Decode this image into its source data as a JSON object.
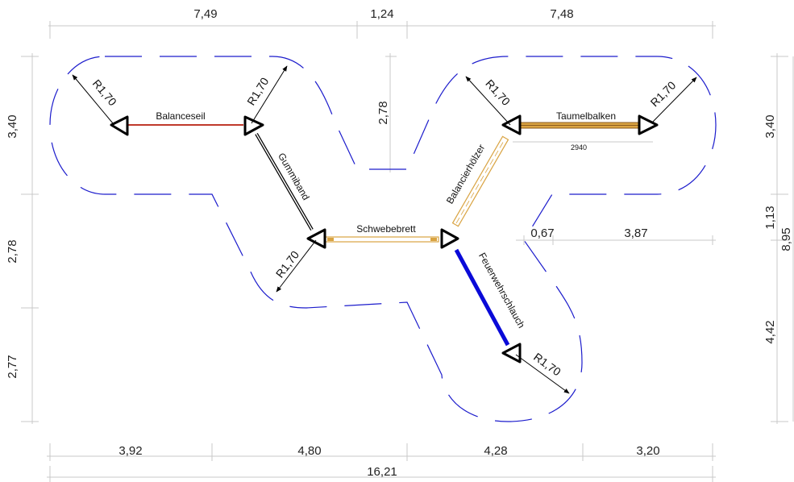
{
  "dimensions": {
    "top": [
      "7,49",
      "1,24",
      "7,48"
    ],
    "bottom": [
      "3,92",
      "4,80",
      "4,28",
      "3,20"
    ],
    "total_width": "16,21",
    "left": [
      "3,40",
      "2,78",
      "2,77"
    ],
    "right_side": [
      "3,40",
      "1,13",
      "4,42"
    ],
    "right_total": "8,95",
    "center_height": "2,78",
    "inner_a": "0,67",
    "inner_b": "3,87",
    "balken_length": "2940"
  },
  "radius_label": "R1,70",
  "elements": {
    "balanceseil": "Balanceseil",
    "gummiband": "Gummiband",
    "schwebebrett": "Schwebebrett",
    "balancierholzer": "Balancierhölzer",
    "taumelbalken": "Taumelbalken",
    "feuerwehrschlauch": "Feuerwehrschlauch"
  },
  "colors": {
    "outline": "#1c1ccc",
    "balanceseil": "#c0392b",
    "schlauch": "#0a0ad8",
    "wood": "#d9a341",
    "wood_dark": "#8a5a1e",
    "dimension": "#c8c8c8"
  }
}
